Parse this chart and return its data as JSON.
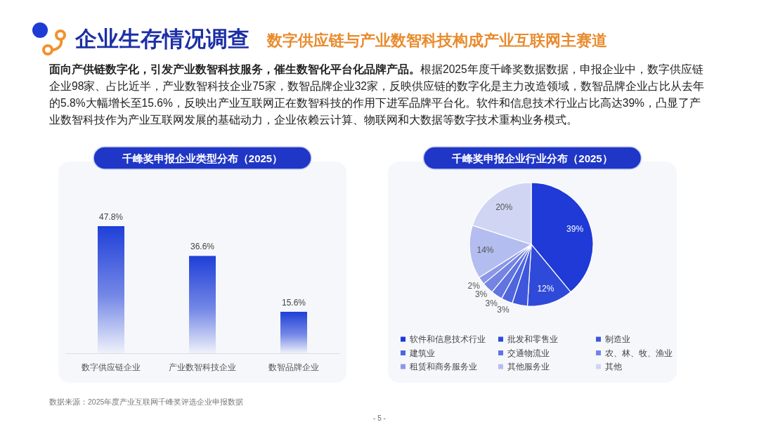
{
  "chart_data": [
    {
      "type": "other",
      "title": "企业生存情况调查",
      "subtitle": "数字供应链与产业数智科技构成产业互联网主赛道",
      "annotations": [
        "**面向产供链数字化，引发产业数智科技服务，催生数智化平台化品牌产品。**根据2025年度千峰奖数据数据，申报企业中，数字供应链企业98家、占比近半，产业数智科技企业75家，数智品牌企业32家，反映供应链的数字化是主力改造领域，数智品牌企业占比从去年的5.8%大幅增长至15.6%，反映出产业互联网正在数智科技的作用下进军品牌平台化。软件和信息技术行业占比高达39%，凸显了产业数智科技作为产业互联网发展的基础动力，企业依赖云计算、物联网和大数据等数字技术重构业务模式。",
        "- 5 -"
      ]
    },
    {
      "type": "bar",
      "title": "千峰奖申报企业类型分布（2025）",
      "categories": [
        "数字供应链企业",
        "产业数智科技企业",
        "数智品牌企业"
      ],
      "values": [
        47.8,
        36.6,
        15.6
      ],
      "value_labels": [
        "47.8%",
        "36.6%",
        "15.6%"
      ],
      "color": "#1f3fd8",
      "annotations": [
        "数据来源：2025年度产业互联网千峰奖评选企业申报数据"
      ]
    },
    {
      "type": "pie",
      "title": "千峰奖申报企业行业分布（2025）",
      "categories": [
        "软件和信息技术行业",
        "批发和零售业",
        "制造业",
        "建筑业",
        "交通物流业",
        "农、林、牧、渔业",
        "租赁和商务服务业",
        "其他服务业",
        "其他"
      ],
      "values": [
        39,
        12,
        4,
        3,
        3,
        3,
        2,
        14,
        20
      ],
      "value_labels": [
        "39%",
        "12%",
        null,
        "3%",
        "3%",
        "3%",
        "2%",
        "14%",
        "20%"
      ],
      "colors": [
        "#1f3ad6",
        "#2f4ad8",
        "#3d56db",
        "#4e65de",
        "#6174e0",
        "#7584e3",
        "#8b98e7",
        "#b4bdef",
        "#d0d5f4"
      ],
      "legend": "bottom"
    }
  ]
}
